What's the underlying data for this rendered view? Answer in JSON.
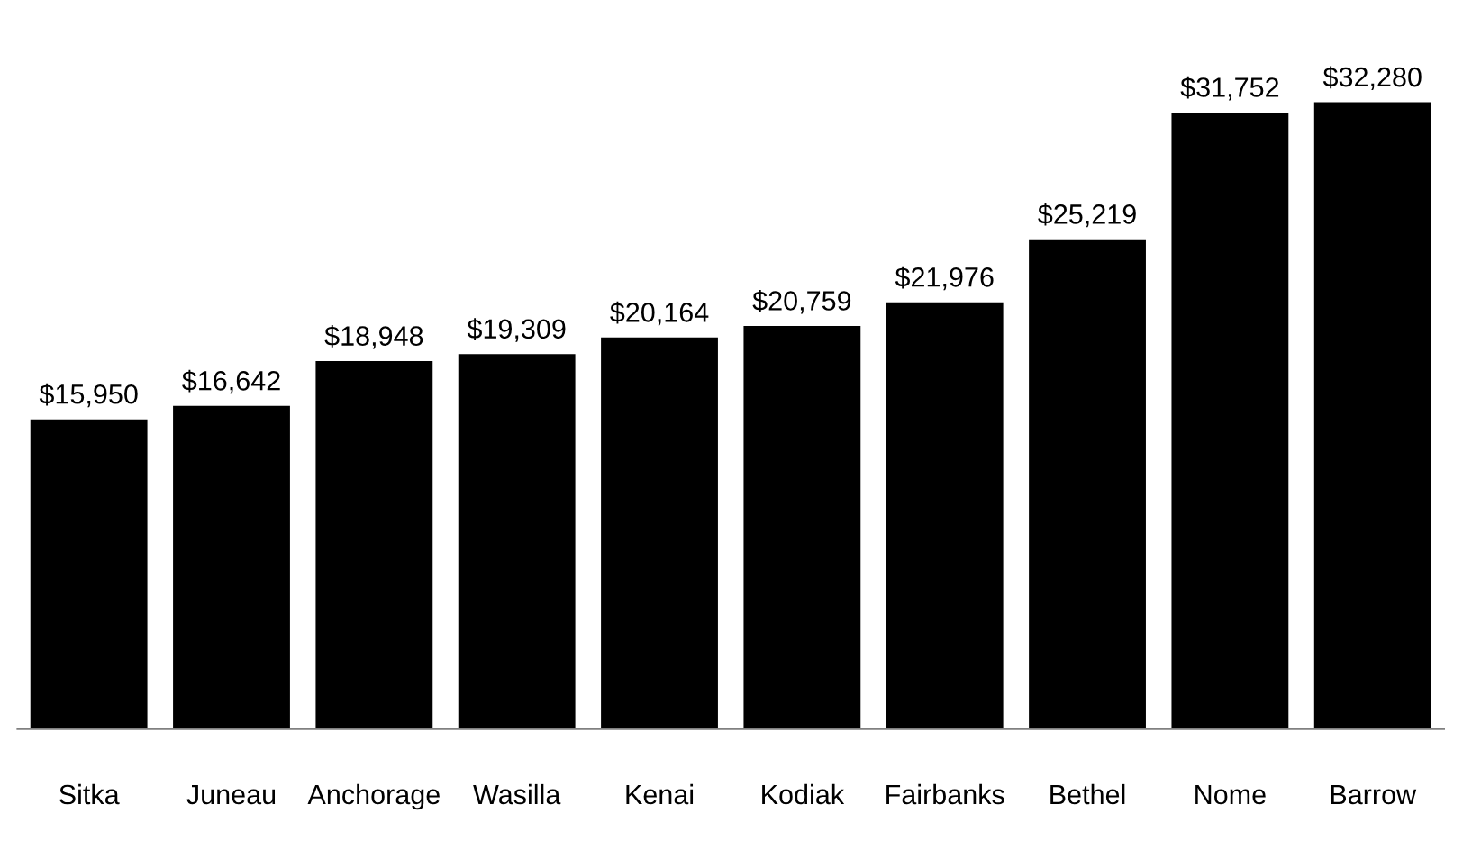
{
  "chart_data": {
    "type": "bar",
    "categories": [
      "Sitka",
      "Juneau",
      "Anchorage",
      "Wasilla",
      "Kenai",
      "Kodiak",
      "Fairbanks",
      "Bethel",
      "Nome",
      "Barrow"
    ],
    "values": [
      15950,
      16642,
      18948,
      19309,
      20164,
      20759,
      21976,
      25219,
      31752,
      32280
    ],
    "value_labels": [
      "$15,950",
      "$16,642",
      "$18,948",
      "$19,309",
      "$20,164",
      "$20,759",
      "$21,976",
      "$25,219",
      "$31,752",
      "$32,280"
    ],
    "color": "#000000",
    "grid": false,
    "tick_labels": "x"
  }
}
